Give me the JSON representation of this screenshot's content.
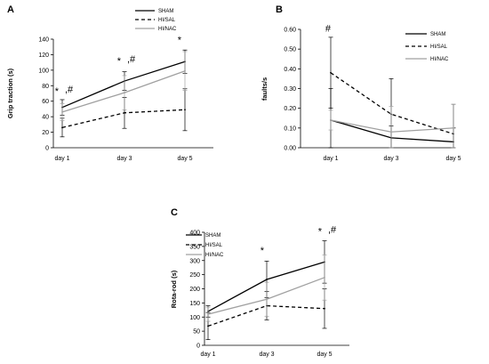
{
  "chart_data": [
    {
      "panel": "A",
      "type": "line",
      "categories": [
        "day 1",
        "day 3",
        "day 5"
      ],
      "ylabel": "Grip traction (s)",
      "ylim": [
        0,
        140
      ],
      "yticks": [
        "0",
        "20",
        "40",
        "60",
        "80",
        "100",
        "120",
        "140"
      ],
      "grid": false,
      "legend_position": "top-right",
      "series": [
        {
          "name": "SHAM",
          "values": [
            52,
            86,
            111
          ],
          "errors": [
            10,
            12,
            15
          ],
          "style": "solid",
          "color": "#000000"
        },
        {
          "name": "HI/SAL",
          "values": [
            26,
            45,
            49
          ],
          "errors": [
            12,
            20,
            27
          ],
          "style": "dashed",
          "color": "#000000"
        },
        {
          "name": "HI/NAC",
          "values": [
            46,
            71,
            99
          ],
          "errors": [
            11,
            22,
            25
          ],
          "style": "solid",
          "color": "#a0a0a0"
        }
      ],
      "annotations": [
        {
          "category": "day 1",
          "text": "*",
          "y": 62
        },
        {
          "category": "day 1",
          "text": ",#",
          "y": 62
        },
        {
          "category": "day 3",
          "text": "*",
          "y": 101
        },
        {
          "category": "day 3",
          "text": ",#",
          "y": 101
        },
        {
          "category": "day 5",
          "text": "*",
          "y": 128
        }
      ]
    },
    {
      "panel": "B",
      "type": "line",
      "categories": [
        "day 1",
        "day 3",
        "day 5"
      ],
      "ylabel": "faults/s",
      "ylim": [
        0,
        0.6
      ],
      "yticks": [
        "0.00",
        "0.10",
        "0.20",
        "0.30",
        "0.40",
        "0.50",
        "0.60"
      ],
      "grid": false,
      "legend_position": "top-right",
      "series": [
        {
          "name": "SHAM",
          "values": [
            0.14,
            0.05,
            0.03
          ],
          "errors": [
            0.16,
            0.06,
            0.07
          ],
          "style": "solid",
          "color": "#000000"
        },
        {
          "name": "HI/SAL",
          "values": [
            0.38,
            0.17,
            0.07
          ],
          "errors": [
            0.18,
            0.18,
            0.15
          ],
          "style": "dashed",
          "color": "#000000"
        },
        {
          "name": "HI/NAC",
          "values": [
            0.14,
            0.08,
            0.1
          ],
          "errors": [
            0.05,
            0.13,
            0.12
          ],
          "style": "solid",
          "color": "#a0a0a0"
        }
      ],
      "annotations": [
        {
          "category": "day 1",
          "text": "#",
          "y": 0.57
        }
      ]
    },
    {
      "panel": "C",
      "type": "line",
      "categories": [
        "day 1",
        "day 3",
        "day 5"
      ],
      "ylabel": "Rota-rod (s)",
      "ylim": [
        0,
        400
      ],
      "yticks": [
        "0",
        "50",
        "100",
        "150",
        "200",
        "250",
        "300",
        "350",
        "400"
      ],
      "grid": false,
      "legend_position": "top-left",
      "series": [
        {
          "name": "SHAM",
          "values": [
            120,
            233,
            295
          ],
          "errors": [
            20,
            65,
            75
          ],
          "style": "solid",
          "color": "#000000"
        },
        {
          "name": "HI/SAL",
          "values": [
            68,
            140,
            130
          ],
          "errors": [
            48,
            50,
            70
          ],
          "style": "dashed",
          "color": "#000000"
        },
        {
          "name": "HI/NAC",
          "values": [
            110,
            163,
            240
          ],
          "errors": [
            25,
            60,
            80
          ],
          "style": "solid",
          "color": "#a0a0a0"
        }
      ],
      "annotations": [
        {
          "category": "day 3",
          "text": "*",
          "y": 312
        },
        {
          "category": "day 5",
          "text": "*",
          "y": 380
        },
        {
          "category": "day 5",
          "text": ",#",
          "y": 380
        }
      ]
    }
  ]
}
